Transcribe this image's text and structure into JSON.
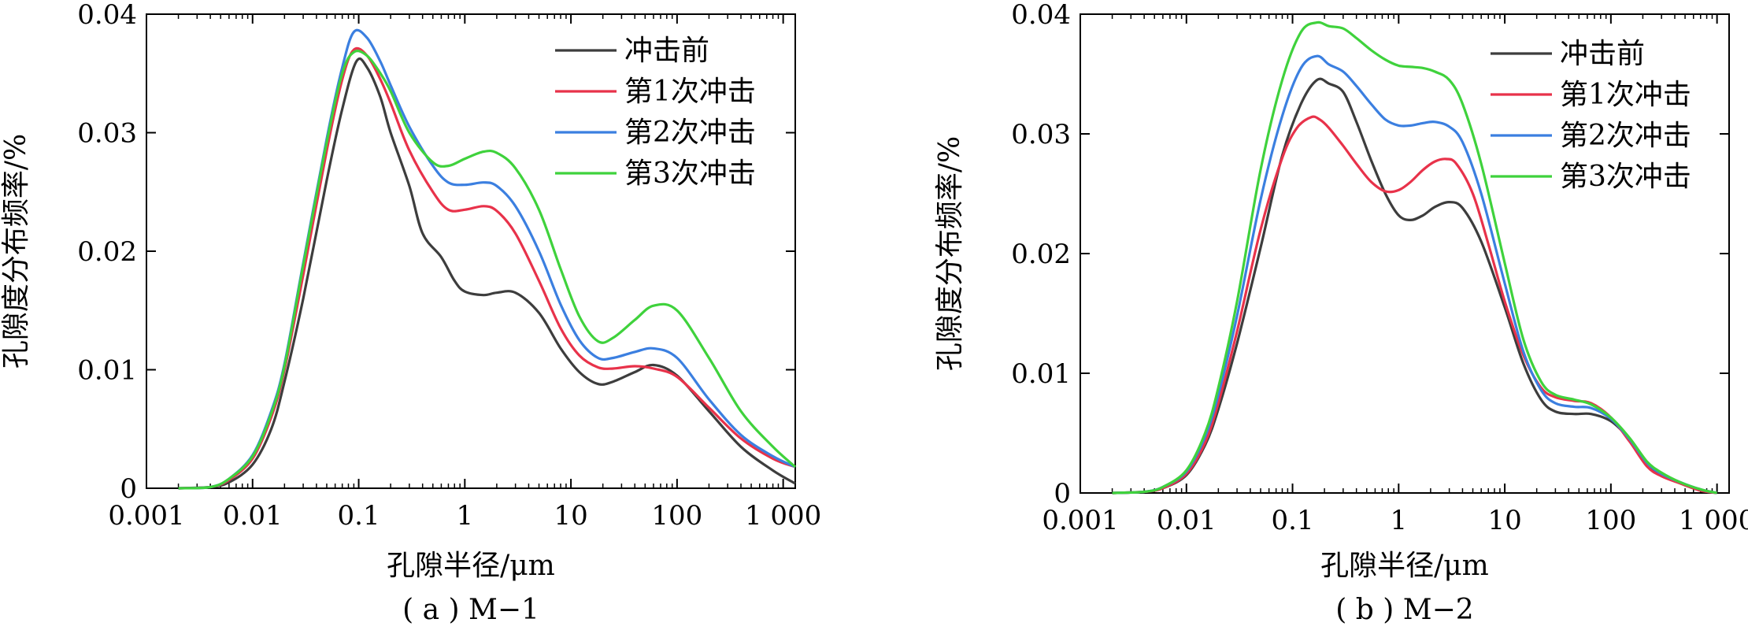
{
  "chart_data": [
    {
      "type": "line",
      "caption": "( a ) M−1",
      "xlabel": "孔隙半径/μm",
      "ylabel": "孔隙度分布频率/%",
      "xscale": "log",
      "xlim": [
        0.001,
        1300
      ],
      "ylim": [
        0,
        0.04
      ],
      "xticks": [
        0.001,
        0.01,
        0.1,
        1,
        10,
        100,
        1000
      ],
      "xtick_labels": [
        "0.001",
        "0.01",
        "0.1",
        "1",
        "10",
        "100",
        "1 000"
      ],
      "yticks": [
        0,
        0.01,
        0.02,
        0.03,
        0.04
      ],
      "ytick_labels": [
        "0",
        "0.01",
        "0.02",
        "0.03",
        "0.04"
      ],
      "legend": "top-right",
      "grid": false,
      "series": [
        {
          "name": "冲击前",
          "color": "#3d3d3d",
          "x": [
            0.002,
            0.004,
            0.006,
            0.01,
            0.015,
            0.02,
            0.03,
            0.05,
            0.07,
            0.095,
            0.12,
            0.16,
            0.2,
            0.3,
            0.4,
            0.6,
            0.8,
            1,
            1.5,
            2,
            3,
            5,
            8,
            12,
            18,
            25,
            40,
            60,
            100,
            200,
            400,
            800,
            1300
          ],
          "y": [
            0,
            0.0001,
            0.0005,
            0.002,
            0.005,
            0.009,
            0.016,
            0.026,
            0.032,
            0.036,
            0.0355,
            0.033,
            0.03,
            0.0255,
            0.0215,
            0.0195,
            0.0175,
            0.0166,
            0.0163,
            0.0165,
            0.0165,
            0.0148,
            0.0118,
            0.0098,
            0.0088,
            0.009,
            0.0098,
            0.0104,
            0.0095,
            0.0065,
            0.0035,
            0.0015,
            0.0004
          ]
        },
        {
          "name": "第1次冲击",
          "color": "#e8324a",
          "x": [
            0.002,
            0.004,
            0.006,
            0.01,
            0.015,
            0.02,
            0.03,
            0.05,
            0.07,
            0.09,
            0.12,
            0.16,
            0.2,
            0.3,
            0.5,
            0.7,
            1,
            1.5,
            2,
            3,
            5,
            8,
            12,
            18,
            25,
            40,
            60,
            100,
            200,
            400,
            800,
            1300
          ],
          "y": [
            0,
            0.0001,
            0.0007,
            0.0025,
            0.006,
            0.01,
            0.018,
            0.0285,
            0.0345,
            0.037,
            0.0365,
            0.0345,
            0.0325,
            0.0285,
            0.025,
            0.0235,
            0.0235,
            0.0238,
            0.0234,
            0.0215,
            0.0175,
            0.0135,
            0.0112,
            0.0102,
            0.0101,
            0.0103,
            0.0101,
            0.0094,
            0.0068,
            0.0042,
            0.0025,
            0.0018
          ]
        },
        {
          "name": "第2次冲击",
          "color": "#3b7fe0",
          "x": [
            0.002,
            0.004,
            0.006,
            0.01,
            0.015,
            0.02,
            0.03,
            0.05,
            0.07,
            0.09,
            0.12,
            0.16,
            0.2,
            0.3,
            0.5,
            0.7,
            1,
            1.5,
            2,
            3,
            5,
            8,
            12,
            18,
            25,
            40,
            60,
            100,
            200,
            400,
            800,
            1300
          ],
          "y": [
            0,
            0.0001,
            0.0008,
            0.0028,
            0.0065,
            0.0105,
            0.019,
            0.0295,
            0.0355,
            0.0385,
            0.038,
            0.036,
            0.034,
            0.0305,
            0.0272,
            0.0258,
            0.0256,
            0.0258,
            0.0255,
            0.0238,
            0.02,
            0.0155,
            0.0125,
            0.011,
            0.011,
            0.0115,
            0.0118,
            0.011,
            0.0075,
            0.0045,
            0.0027,
            0.0018
          ]
        },
        {
          "name": "第3次冲击",
          "color": "#3fd23c",
          "x": [
            0.002,
            0.004,
            0.006,
            0.01,
            0.015,
            0.02,
            0.03,
            0.05,
            0.07,
            0.09,
            0.12,
            0.16,
            0.2,
            0.3,
            0.5,
            0.7,
            1,
            1.5,
            2,
            3,
            5,
            8,
            12,
            18,
            25,
            40,
            60,
            100,
            200,
            400,
            800,
            1300
          ],
          "y": [
            0,
            0.0001,
            0.0008,
            0.0027,
            0.0063,
            0.0103,
            0.0188,
            0.0292,
            0.035,
            0.0368,
            0.0365,
            0.035,
            0.0335,
            0.03,
            0.0275,
            0.0272,
            0.0278,
            0.0284,
            0.0283,
            0.027,
            0.0235,
            0.0185,
            0.0145,
            0.0124,
            0.0127,
            0.0142,
            0.0154,
            0.015,
            0.011,
            0.0065,
            0.0035,
            0.0018
          ]
        }
      ]
    },
    {
      "type": "line",
      "caption": "( b ) M−2",
      "xlabel": "孔隙半径/μm",
      "ylabel": "孔隙度分布频率/%",
      "xscale": "log",
      "xlim": [
        0.001,
        1300
      ],
      "ylim": [
        0,
        0.04
      ],
      "xticks": [
        0.001,
        0.01,
        0.1,
        1,
        10,
        100,
        1000
      ],
      "xtick_labels": [
        "0.001",
        "0.01",
        "0.1",
        "1",
        "10",
        "100",
        "1 000"
      ],
      "yticks": [
        0,
        0.01,
        0.02,
        0.03,
        0.04
      ],
      "ytick_labels": [
        "0",
        "0.01",
        "0.02",
        "0.03",
        "0.04"
      ],
      "legend": "top-right",
      "grid": false,
      "series": [
        {
          "name": "冲击前",
          "color": "#3d3d3d",
          "x": [
            0.002,
            0.004,
            0.006,
            0.01,
            0.015,
            0.02,
            0.03,
            0.05,
            0.08,
            0.12,
            0.17,
            0.22,
            0.3,
            0.4,
            0.55,
            0.75,
            1,
            1.3,
            1.7,
            2.2,
            3,
            4,
            6,
            10,
            15,
            22,
            30,
            45,
            65,
            100,
            150,
            220,
            300,
            450,
            700,
            1000
          ],
          "y": [
            0,
            0.0001,
            0.0004,
            0.0015,
            0.004,
            0.007,
            0.0125,
            0.0205,
            0.0282,
            0.0325,
            0.0345,
            0.0342,
            0.0335,
            0.031,
            0.0278,
            0.025,
            0.0232,
            0.0228,
            0.0232,
            0.0239,
            0.0243,
            0.0238,
            0.021,
            0.0155,
            0.0108,
            0.0078,
            0.0068,
            0.0066,
            0.0066,
            0.006,
            0.0045,
            0.0025,
            0.0015,
            0.0008,
            0.0002,
            0
          ]
        },
        {
          "name": "第1次冲击",
          "color": "#e8324a",
          "x": [
            0.002,
            0.004,
            0.006,
            0.01,
            0.015,
            0.02,
            0.03,
            0.05,
            0.08,
            0.11,
            0.15,
            0.18,
            0.22,
            0.3,
            0.4,
            0.55,
            0.75,
            1,
            1.3,
            1.7,
            2.2,
            2.8,
            3.5,
            5,
            7,
            10,
            15,
            22,
            30,
            45,
            65,
            100,
            150,
            220,
            300,
            450,
            700,
            1000
          ],
          "y": [
            0,
            0.0001,
            0.0004,
            0.0016,
            0.0042,
            0.0075,
            0.0135,
            0.022,
            0.028,
            0.0305,
            0.0314,
            0.0312,
            0.0305,
            0.029,
            0.0275,
            0.026,
            0.0252,
            0.0253,
            0.026,
            0.027,
            0.0277,
            0.0279,
            0.0275,
            0.025,
            0.0208,
            0.016,
            0.0115,
            0.0088,
            0.008,
            0.0077,
            0.0075,
            0.0063,
            0.0043,
            0.0022,
            0.0014,
            0.0008,
            0.0002,
            0
          ]
        },
        {
          "name": "第2次冲击",
          "color": "#3b7fe0",
          "x": [
            0.002,
            0.004,
            0.006,
            0.01,
            0.015,
            0.02,
            0.03,
            0.05,
            0.08,
            0.12,
            0.17,
            0.22,
            0.3,
            0.4,
            0.55,
            0.75,
            1,
            1.3,
            1.7,
            2.2,
            3,
            4,
            6,
            10,
            15,
            22,
            30,
            45,
            65,
            100,
            150,
            220,
            300,
            450,
            700,
            1000
          ],
          "y": [
            0,
            0.0001,
            0.0005,
            0.0018,
            0.0047,
            0.0082,
            0.0148,
            0.0245,
            0.0315,
            0.0355,
            0.0365,
            0.0358,
            0.0352,
            0.034,
            0.0325,
            0.0312,
            0.0307,
            0.0307,
            0.0309,
            0.031,
            0.0306,
            0.0293,
            0.025,
            0.0175,
            0.0118,
            0.0086,
            0.0075,
            0.0072,
            0.0071,
            0.0062,
            0.0045,
            0.0025,
            0.0016,
            0.0009,
            0.0003,
            0
          ]
        },
        {
          "name": "第3次冲击",
          "color": "#3fd23c",
          "x": [
            0.002,
            0.004,
            0.006,
            0.01,
            0.015,
            0.02,
            0.03,
            0.05,
            0.08,
            0.12,
            0.17,
            0.22,
            0.3,
            0.4,
            0.55,
            0.75,
            1,
            1.3,
            1.7,
            2.2,
            3,
            4,
            6,
            10,
            15,
            22,
            30,
            45,
            65,
            100,
            150,
            220,
            300,
            450,
            700,
            1000
          ],
          "y": [
            0,
            0.0001,
            0.0005,
            0.0019,
            0.005,
            0.0088,
            0.016,
            0.027,
            0.0345,
            0.0385,
            0.0393,
            0.039,
            0.0388,
            0.038,
            0.037,
            0.0362,
            0.0357,
            0.0356,
            0.0355,
            0.0352,
            0.0345,
            0.0325,
            0.0275,
            0.0192,
            0.0128,
            0.0093,
            0.0082,
            0.0078,
            0.0074,
            0.0063,
            0.0046,
            0.0026,
            0.0017,
            0.0009,
            0.0003,
            0
          ]
        }
      ]
    }
  ]
}
